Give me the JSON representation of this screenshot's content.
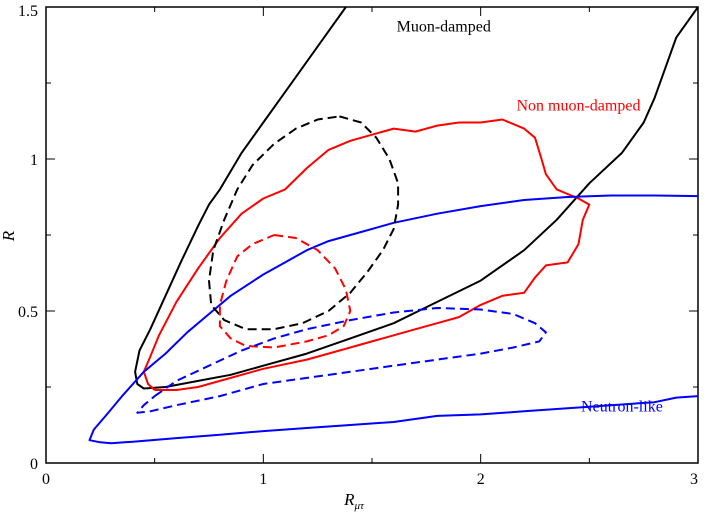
{
  "chart_data": {
    "type": "line",
    "title": "",
    "xlabel": "R",
    "xlabel_sub": "μτ",
    "ylabel": "R",
    "xlim": [
      0,
      3
    ],
    "ylim": [
      0,
      1.5
    ],
    "x_ticks": [
      "0",
      "1",
      "2",
      "3"
    ],
    "y_ticks": [
      "0",
      "0.5",
      "1",
      "1.5"
    ],
    "grid": false,
    "colors": {
      "black": "#000000",
      "red": "#ff0000",
      "blue": "#0000ff"
    },
    "series": [
      {
        "name": "Muon-damped outer contour",
        "color": "#000000",
        "style": "solid",
        "points": [
          [
            1.38,
            1.5
          ],
          [
            1.3,
            1.42
          ],
          [
            1.2,
            1.32
          ],
          [
            1.1,
            1.22
          ],
          [
            1.0,
            1.12
          ],
          [
            0.9,
            1.02
          ],
          [
            0.8,
            0.9
          ],
          [
            0.75,
            0.85
          ],
          [
            0.7,
            0.78
          ],
          [
            0.62,
            0.66
          ],
          [
            0.55,
            0.55
          ],
          [
            0.48,
            0.44
          ],
          [
            0.43,
            0.37
          ],
          [
            0.41,
            0.3
          ],
          [
            0.42,
            0.26
          ],
          [
            0.45,
            0.245
          ],
          [
            0.55,
            0.25
          ],
          [
            0.7,
            0.27
          ],
          [
            0.85,
            0.29
          ],
          [
            1.0,
            0.32
          ],
          [
            1.2,
            0.36
          ],
          [
            1.4,
            0.41
          ],
          [
            1.6,
            0.46
          ],
          [
            1.8,
            0.53
          ],
          [
            2.0,
            0.6
          ],
          [
            2.2,
            0.7
          ],
          [
            2.35,
            0.8
          ],
          [
            2.5,
            0.92
          ],
          [
            2.65,
            1.02
          ],
          [
            2.75,
            1.12
          ],
          [
            2.8,
            1.2
          ],
          [
            2.85,
            1.3
          ],
          [
            2.9,
            1.4
          ],
          [
            3.0,
            1.5
          ]
        ]
      },
      {
        "name": "Non muon-damped outer contour",
        "color": "#ff0000",
        "style": "solid",
        "points": [
          [
            0.5,
            0.24
          ],
          [
            0.47,
            0.26
          ],
          [
            0.45,
            0.3
          ],
          [
            0.48,
            0.35
          ],
          [
            0.52,
            0.42
          ],
          [
            0.6,
            0.53
          ],
          [
            0.7,
            0.64
          ],
          [
            0.8,
            0.74
          ],
          [
            0.9,
            0.82
          ],
          [
            1.0,
            0.87
          ],
          [
            1.1,
            0.9
          ],
          [
            1.2,
            0.97
          ],
          [
            1.3,
            1.03
          ],
          [
            1.4,
            1.06
          ],
          [
            1.5,
            1.08
          ],
          [
            1.6,
            1.1
          ],
          [
            1.7,
            1.09
          ],
          [
            1.8,
            1.11
          ],
          [
            1.9,
            1.12
          ],
          [
            2.0,
            1.12
          ],
          [
            2.1,
            1.13
          ],
          [
            2.2,
            1.1
          ],
          [
            2.25,
            1.07
          ],
          [
            2.28,
            1.0
          ],
          [
            2.3,
            0.95
          ],
          [
            2.35,
            0.9
          ],
          [
            2.45,
            0.87
          ],
          [
            2.5,
            0.85
          ],
          [
            2.47,
            0.8
          ],
          [
            2.45,
            0.72
          ],
          [
            2.4,
            0.66
          ],
          [
            2.3,
            0.65
          ],
          [
            2.25,
            0.61
          ],
          [
            2.2,
            0.56
          ],
          [
            2.1,
            0.55
          ],
          [
            2.0,
            0.52
          ],
          [
            1.9,
            0.48
          ],
          [
            1.8,
            0.46
          ],
          [
            1.7,
            0.44
          ],
          [
            1.6,
            0.42
          ],
          [
            1.5,
            0.4
          ],
          [
            1.4,
            0.38
          ],
          [
            1.3,
            0.36
          ],
          [
            1.2,
            0.34
          ],
          [
            1.0,
            0.31
          ],
          [
            0.8,
            0.27
          ],
          [
            0.7,
            0.25
          ],
          [
            0.6,
            0.24
          ],
          [
            0.5,
            0.24
          ]
        ]
      },
      {
        "name": "Neutron-like outer contour",
        "color": "#0000ff",
        "style": "solid",
        "points": [
          [
            3.0,
            0.22
          ],
          [
            2.9,
            0.215
          ],
          [
            2.8,
            0.2
          ],
          [
            2.6,
            0.19
          ],
          [
            2.4,
            0.18
          ],
          [
            2.2,
            0.17
          ],
          [
            2.0,
            0.16
          ],
          [
            1.8,
            0.155
          ],
          [
            1.6,
            0.135
          ],
          [
            1.4,
            0.125
          ],
          [
            1.2,
            0.115
          ],
          [
            1.0,
            0.105
          ],
          [
            0.8,
            0.093
          ],
          [
            0.6,
            0.082
          ],
          [
            0.4,
            0.07
          ],
          [
            0.3,
            0.065
          ],
          [
            0.25,
            0.068
          ],
          [
            0.2,
            0.075
          ],
          [
            0.22,
            0.11
          ],
          [
            0.28,
            0.16
          ],
          [
            0.35,
            0.22
          ],
          [
            0.45,
            0.3
          ],
          [
            0.55,
            0.36
          ],
          [
            0.65,
            0.43
          ],
          [
            0.75,
            0.49
          ],
          [
            0.85,
            0.55
          ],
          [
            1.0,
            0.62
          ],
          [
            1.1,
            0.66
          ],
          [
            1.2,
            0.7
          ],
          [
            1.3,
            0.73
          ],
          [
            1.45,
            0.76
          ],
          [
            1.6,
            0.79
          ],
          [
            1.8,
            0.82
          ],
          [
            2.0,
            0.845
          ],
          [
            2.2,
            0.865
          ],
          [
            2.4,
            0.875
          ],
          [
            2.6,
            0.88
          ],
          [
            2.8,
            0.88
          ],
          [
            3.0,
            0.878
          ]
        ]
      },
      {
        "name": "Muon-damped inner contour",
        "color": "#000000",
        "style": "dashed",
        "points": [
          [
            1.35,
            1.14
          ],
          [
            1.45,
            1.12
          ],
          [
            1.52,
            1.07
          ],
          [
            1.58,
            1.0
          ],
          [
            1.62,
            0.92
          ],
          [
            1.62,
            0.85
          ],
          [
            1.6,
            0.77
          ],
          [
            1.55,
            0.7
          ],
          [
            1.48,
            0.63
          ],
          [
            1.4,
            0.56
          ],
          [
            1.3,
            0.5
          ],
          [
            1.18,
            0.46
          ],
          [
            1.05,
            0.44
          ],
          [
            0.92,
            0.44
          ],
          [
            0.82,
            0.47
          ],
          [
            0.76,
            0.52
          ],
          [
            0.75,
            0.6
          ],
          [
            0.77,
            0.7
          ],
          [
            0.82,
            0.8
          ],
          [
            0.88,
            0.9
          ],
          [
            0.95,
            0.98
          ],
          [
            1.05,
            1.05
          ],
          [
            1.15,
            1.1
          ],
          [
            1.25,
            1.13
          ],
          [
            1.35,
            1.14
          ]
        ]
      },
      {
        "name": "Non muon-damped inner contour",
        "color": "#ff0000",
        "style": "dashed",
        "points": [
          [
            1.05,
            0.75
          ],
          [
            1.15,
            0.74
          ],
          [
            1.25,
            0.7
          ],
          [
            1.33,
            0.64
          ],
          [
            1.38,
            0.57
          ],
          [
            1.4,
            0.5
          ],
          [
            1.37,
            0.45
          ],
          [
            1.3,
            0.42
          ],
          [
            1.2,
            0.4
          ],
          [
            1.05,
            0.38
          ],
          [
            0.92,
            0.385
          ],
          [
            0.85,
            0.41
          ],
          [
            0.8,
            0.45
          ],
          [
            0.8,
            0.52
          ],
          [
            0.83,
            0.6
          ],
          [
            0.88,
            0.68
          ],
          [
            0.95,
            0.72
          ],
          [
            1.05,
            0.75
          ]
        ]
      },
      {
        "name": "Neutron-like inner contour",
        "color": "#0000ff",
        "style": "dashed",
        "points": [
          [
            0.5,
            0.22
          ],
          [
            0.6,
            0.27
          ],
          [
            0.75,
            0.32
          ],
          [
            0.9,
            0.37
          ],
          [
            1.05,
            0.41
          ],
          [
            1.2,
            0.44
          ],
          [
            1.4,
            0.47
          ],
          [
            1.6,
            0.495
          ],
          [
            1.8,
            0.51
          ],
          [
            2.0,
            0.505
          ],
          [
            2.15,
            0.49
          ],
          [
            2.25,
            0.46
          ],
          [
            2.3,
            0.43
          ],
          [
            2.27,
            0.4
          ],
          [
            2.15,
            0.38
          ],
          [
            2.0,
            0.36
          ],
          [
            1.8,
            0.34
          ],
          [
            1.6,
            0.32
          ],
          [
            1.4,
            0.3
          ],
          [
            1.2,
            0.28
          ],
          [
            1.0,
            0.26
          ],
          [
            0.8,
            0.22
          ],
          [
            0.6,
            0.19
          ],
          [
            0.48,
            0.17
          ],
          [
            0.42,
            0.165
          ],
          [
            0.45,
            0.19
          ],
          [
            0.5,
            0.22
          ]
        ]
      }
    ],
    "annotations": [
      {
        "text": "Muon-damped",
        "color": "#000000",
        "x": 1.83,
        "y": 1.42
      },
      {
        "text": "Non muon-damped",
        "color": "#ff0000",
        "x": 2.45,
        "y": 1.16
      },
      {
        "text": "Neutron-like",
        "color": "#0000ff",
        "x": 2.65,
        "y": 0.17
      }
    ]
  }
}
